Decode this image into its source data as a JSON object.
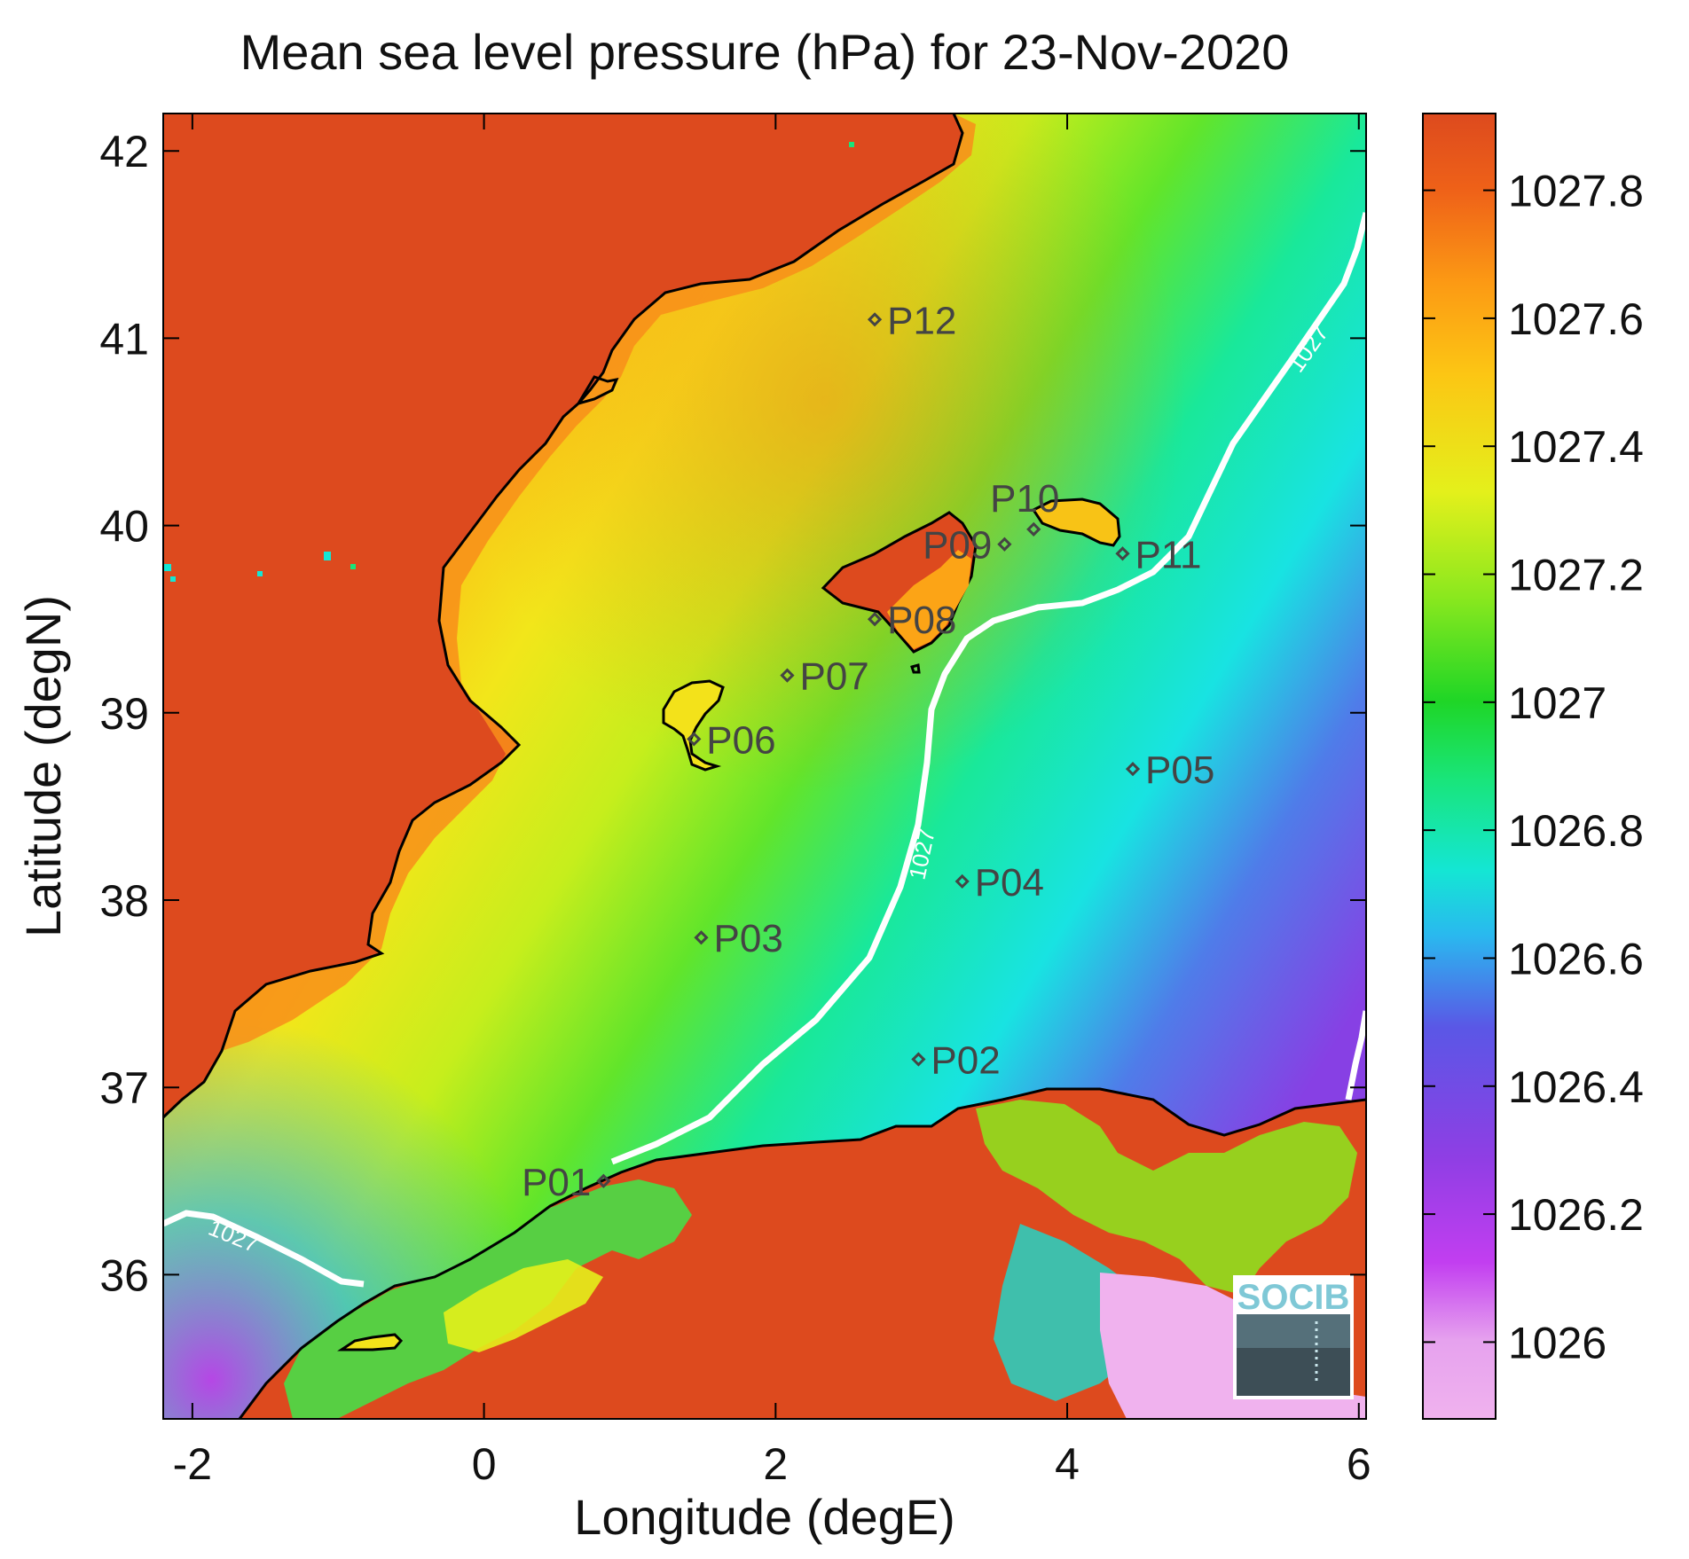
{
  "title": "Mean sea level pressure (hPa) for 23-Nov-2020",
  "map": {
    "xlabel": "Longitude (degE)",
    "ylabel": "Latitude (degN)",
    "xlim": [
      -2.2,
      6.05
    ],
    "ylim": [
      35.23,
      42.2
    ],
    "xticks": [
      {
        "value": -2,
        "label": "-2"
      },
      {
        "value": 0,
        "label": "0"
      },
      {
        "value": 2,
        "label": "2"
      },
      {
        "value": 4,
        "label": "4"
      },
      {
        "value": 6,
        "label": "6"
      }
    ],
    "yticks": [
      {
        "value": 36,
        "label": "36"
      },
      {
        "value": 37,
        "label": "37"
      },
      {
        "value": 38,
        "label": "38"
      },
      {
        "value": 39,
        "label": "39"
      },
      {
        "value": 40,
        "label": "40"
      },
      {
        "value": 41,
        "label": "41"
      },
      {
        "value": 42,
        "label": "42"
      }
    ],
    "stations": [
      {
        "id": "P01",
        "lon": 0.82,
        "lat": 36.5,
        "label_side": "left"
      },
      {
        "id": "P02",
        "lon": 2.98,
        "lat": 37.15,
        "label_side": "right"
      },
      {
        "id": "P03",
        "lon": 1.49,
        "lat": 37.8,
        "label_side": "right"
      },
      {
        "id": "P04",
        "lon": 3.28,
        "lat": 38.1,
        "label_side": "right"
      },
      {
        "id": "P05",
        "lon": 4.45,
        "lat": 38.7,
        "label_side": "right"
      },
      {
        "id": "P06",
        "lon": 1.44,
        "lat": 38.86,
        "label_side": "right"
      },
      {
        "id": "P07",
        "lon": 2.08,
        "lat": 39.2,
        "label_side": "right"
      },
      {
        "id": "P08",
        "lon": 2.68,
        "lat": 39.5,
        "label_side": "right"
      },
      {
        "id": "P09",
        "lon": 3.57,
        "lat": 39.9,
        "label_side": "left"
      },
      {
        "id": "P10",
        "lon": 3.77,
        "lat": 39.98,
        "label_side": "above"
      },
      {
        "id": "P11",
        "lon": 4.38,
        "lat": 39.85,
        "label_side": "right"
      },
      {
        "id": "P12",
        "lon": 2.68,
        "lat": 41.1,
        "label_side": "right"
      }
    ],
    "contour": {
      "level": "1027"
    },
    "logo": "SOCIB"
  },
  "colorbar": {
    "range": [
      1025.88,
      1027.92
    ],
    "ticks": [
      {
        "value": 1026,
        "label": "1026"
      },
      {
        "value": 1026.2,
        "label": "1026.2"
      },
      {
        "value": 1026.4,
        "label": "1026.4"
      },
      {
        "value": 1026.6,
        "label": "1026.6"
      },
      {
        "value": 1026.8,
        "label": "1026.8"
      },
      {
        "value": 1027,
        "label": "1027"
      },
      {
        "value": 1027.2,
        "label": "1027.2"
      },
      {
        "value": 1027.4,
        "label": "1027.4"
      },
      {
        "value": 1027.6,
        "label": "1027.6"
      },
      {
        "value": 1027.8,
        "label": "1027.8"
      }
    ],
    "colors": [
      "#f0b2ee",
      "#c23ef0",
      "#8f3ee4",
      "#5a57e6",
      "#2ab8ef",
      "#14e6d4",
      "#19e57a",
      "#1fd626",
      "#8be81e",
      "#e4f01b",
      "#fcc614",
      "#fc9a14",
      "#ef6218",
      "#dd4a1e"
    ]
  }
}
